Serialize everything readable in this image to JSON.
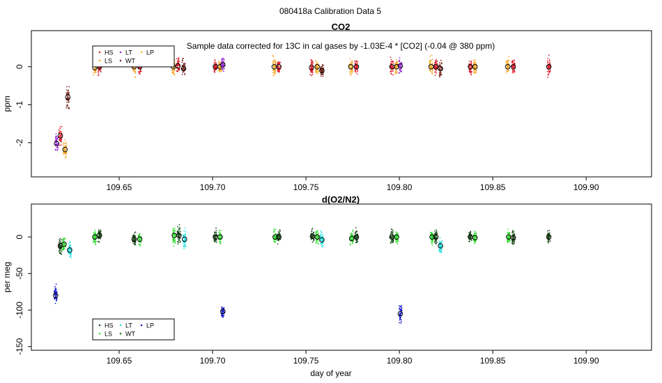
{
  "page_title": "080418a   Calibration Data 5",
  "xlabel": "day of year",
  "legend_labels": [
    "HS",
    "LT",
    "LP",
    "LS",
    "WT"
  ],
  "colors": {
    "HS": "#dd1f2b",
    "LS": "#f5a623",
    "LT": "#9b30d9",
    "WT": "#7a2a22",
    "LP": "#e8c020",
    "o2_HS": "#1a4d1a",
    "o2_LS": "#33dd33",
    "o2_LT": "#22e0e0",
    "o2_WT": "#1a7a1a",
    "o2_LP": "#1a1acc"
  },
  "chart_data": [
    {
      "type": "scatter",
      "title": "CO2",
      "annotation": "Sample data corrected for 13C in cal gases by -1.03E-4 * [CO2] (-0.04 @ 380 ppm)",
      "ylabel": "ppm",
      "xlim": [
        109.603,
        109.935
      ],
      "ylim": [
        -2.9,
        0.95
      ],
      "xticks": [
        109.65,
        109.7,
        109.75,
        109.8,
        109.85,
        109.9
      ],
      "xtick_labels": [
        "109.65",
        "109.70",
        "109.75",
        "109.80",
        "109.85",
        "109.90"
      ],
      "yticks": [
        -2,
        -1,
        0
      ],
      "ytick_labels": [
        "-2",
        "-1",
        "0"
      ],
      "legend": [
        "HS",
        "LT",
        "LP",
        "LS",
        "WT"
      ],
      "clusters": [
        {
          "x": 109.6165,
          "y": -2.02,
          "series": "LT",
          "spread": 0.18
        },
        {
          "x": 109.6185,
          "y": -1.82,
          "series": "HS",
          "spread": 0.18
        },
        {
          "x": 109.621,
          "y": -2.18,
          "series": "LS",
          "spread": 0.18
        },
        {
          "x": 109.6225,
          "y": -0.8,
          "series": "WT",
          "spread": 0.22
        },
        {
          "x": 109.637,
          "y": -0.02,
          "series": "LS",
          "spread": 0.15
        },
        {
          "x": 109.6395,
          "y": 0.0,
          "series": "HS",
          "spread": 0.18
        },
        {
          "x": 109.658,
          "y": 0.0,
          "series": "LS",
          "spread": 0.18
        },
        {
          "x": 109.661,
          "y": 0.0,
          "series": "HS",
          "spread": 0.15
        },
        {
          "x": 109.679,
          "y": 0.0,
          "series": "LS",
          "spread": 0.18
        },
        {
          "x": 109.6815,
          "y": 0.02,
          "series": "HS",
          "spread": 0.15
        },
        {
          "x": 109.6845,
          "y": -0.05,
          "series": "WT",
          "spread": 0.18
        },
        {
          "x": 109.7015,
          "y": 0.0,
          "series": "HS",
          "spread": 0.12
        },
        {
          "x": 109.704,
          "y": 0.0,
          "series": "LS",
          "spread": 0.12
        },
        {
          "x": 109.7055,
          "y": 0.05,
          "series": "LT",
          "spread": 0.12
        },
        {
          "x": 109.733,
          "y": 0.0,
          "series": "LS",
          "spread": 0.2
        },
        {
          "x": 109.7355,
          "y": 0.0,
          "series": "HS",
          "spread": 0.12
        },
        {
          "x": 109.753,
          "y": -0.02,
          "series": "HS",
          "spread": 0.15
        },
        {
          "x": 109.756,
          "y": 0.0,
          "series": "LS",
          "spread": 0.15
        },
        {
          "x": 109.7585,
          "y": -0.1,
          "series": "WT",
          "spread": 0.15
        },
        {
          "x": 109.774,
          "y": 0.0,
          "series": "LS",
          "spread": 0.18
        },
        {
          "x": 109.777,
          "y": 0.0,
          "series": "HS",
          "spread": 0.15
        },
        {
          "x": 109.796,
          "y": 0.0,
          "series": "HS",
          "spread": 0.18
        },
        {
          "x": 109.7985,
          "y": 0.0,
          "series": "LS",
          "spread": 0.15
        },
        {
          "x": 109.8005,
          "y": 0.02,
          "series": "LT",
          "spread": 0.12
        },
        {
          "x": 109.817,
          "y": 0.0,
          "series": "LS",
          "spread": 0.18
        },
        {
          "x": 109.8195,
          "y": 0.0,
          "series": "HS",
          "spread": 0.15
        },
        {
          "x": 109.822,
          "y": -0.05,
          "series": "WT",
          "spread": 0.15
        },
        {
          "x": 109.838,
          "y": 0.0,
          "series": "HS",
          "spread": 0.15
        },
        {
          "x": 109.8405,
          "y": 0.0,
          "series": "LS",
          "spread": 0.15
        },
        {
          "x": 109.858,
          "y": 0.0,
          "series": "LS",
          "spread": 0.18
        },
        {
          "x": 109.861,
          "y": 0.0,
          "series": "HS",
          "spread": 0.15
        },
        {
          "x": 109.88,
          "y": 0.0,
          "series": "HS",
          "spread": 0.18
        }
      ]
    },
    {
      "type": "scatter",
      "title": "d(O2/N2)",
      "ylabel": "per meg",
      "xlabel": "day of year",
      "xlim": [
        109.603,
        109.935
      ],
      "ylim": [
        -155,
        45
      ],
      "xticks": [
        109.65,
        109.7,
        109.75,
        109.8,
        109.85,
        109.9
      ],
      "xtick_labels": [
        "109.65",
        "109.70",
        "109.75",
        "109.80",
        "109.85",
        "109.90"
      ],
      "yticks": [
        -150,
        -100,
        -50,
        0
      ],
      "ytick_labels": [
        "-150",
        "-100",
        "-50",
        "0"
      ],
      "legend": [
        "HS",
        "LT",
        "LP",
        "LS",
        "WT"
      ],
      "clusters": [
        {
          "x": 109.616,
          "y": -80,
          "series": "o2_LP",
          "spread": 9
        },
        {
          "x": 109.6185,
          "y": -12,
          "series": "o2_HS",
          "spread": 8
        },
        {
          "x": 109.6205,
          "y": -10,
          "series": "o2_LS",
          "spread": 8
        },
        {
          "x": 109.6235,
          "y": -18,
          "series": "o2_LT",
          "spread": 10
        },
        {
          "x": 109.637,
          "y": 0,
          "series": "o2_LS",
          "spread": 7
        },
        {
          "x": 109.6395,
          "y": 2,
          "series": "o2_HS",
          "spread": 7
        },
        {
          "x": 109.658,
          "y": -3,
          "series": "o2_HS",
          "spread": 7
        },
        {
          "x": 109.661,
          "y": -3,
          "series": "o2_LS",
          "spread": 7
        },
        {
          "x": 109.6795,
          "y": 2,
          "series": "o2_LS",
          "spread": 9
        },
        {
          "x": 109.682,
          "y": 2,
          "series": "o2_HS",
          "spread": 9
        },
        {
          "x": 109.685,
          "y": -3,
          "series": "o2_LT",
          "spread": 10
        },
        {
          "x": 109.7015,
          "y": 0,
          "series": "o2_HS",
          "spread": 7
        },
        {
          "x": 109.704,
          "y": 0,
          "series": "o2_LS",
          "spread": 7
        },
        {
          "x": 109.7055,
          "y": -102,
          "series": "o2_LP",
          "spread": 7
        },
        {
          "x": 109.7335,
          "y": 0,
          "series": "o2_LS",
          "spread": 8
        },
        {
          "x": 109.7355,
          "y": 0,
          "series": "o2_HS",
          "spread": 7
        },
        {
          "x": 109.7535,
          "y": 1,
          "series": "o2_HS",
          "spread": 7
        },
        {
          "x": 109.756,
          "y": 0,
          "series": "o2_LS",
          "spread": 7
        },
        {
          "x": 109.7585,
          "y": -4,
          "series": "o2_LT",
          "spread": 8
        },
        {
          "x": 109.7745,
          "y": -2,
          "series": "o2_LS",
          "spread": 7
        },
        {
          "x": 109.777,
          "y": 0,
          "series": "o2_HS",
          "spread": 7
        },
        {
          "x": 109.796,
          "y": 0,
          "series": "o2_HS",
          "spread": 8
        },
        {
          "x": 109.7985,
          "y": 0,
          "series": "o2_LS",
          "spread": 7
        },
        {
          "x": 109.8005,
          "y": -105,
          "series": "o2_LP",
          "spread": 9
        },
        {
          "x": 109.8175,
          "y": 0,
          "series": "o2_LS",
          "spread": 7
        },
        {
          "x": 109.8195,
          "y": 0,
          "series": "o2_HS",
          "spread": 7
        },
        {
          "x": 109.822,
          "y": -12,
          "series": "o2_LT",
          "spread": 9
        },
        {
          "x": 109.838,
          "y": 0,
          "series": "o2_HS",
          "spread": 6
        },
        {
          "x": 109.8405,
          "y": -1,
          "series": "o2_LS",
          "spread": 6
        },
        {
          "x": 109.8585,
          "y": 0,
          "series": "o2_LS",
          "spread": 7
        },
        {
          "x": 109.861,
          "y": -1,
          "series": "o2_HS",
          "spread": 7
        },
        {
          "x": 109.88,
          "y": 0,
          "series": "o2_HS",
          "spread": 7
        }
      ]
    }
  ]
}
